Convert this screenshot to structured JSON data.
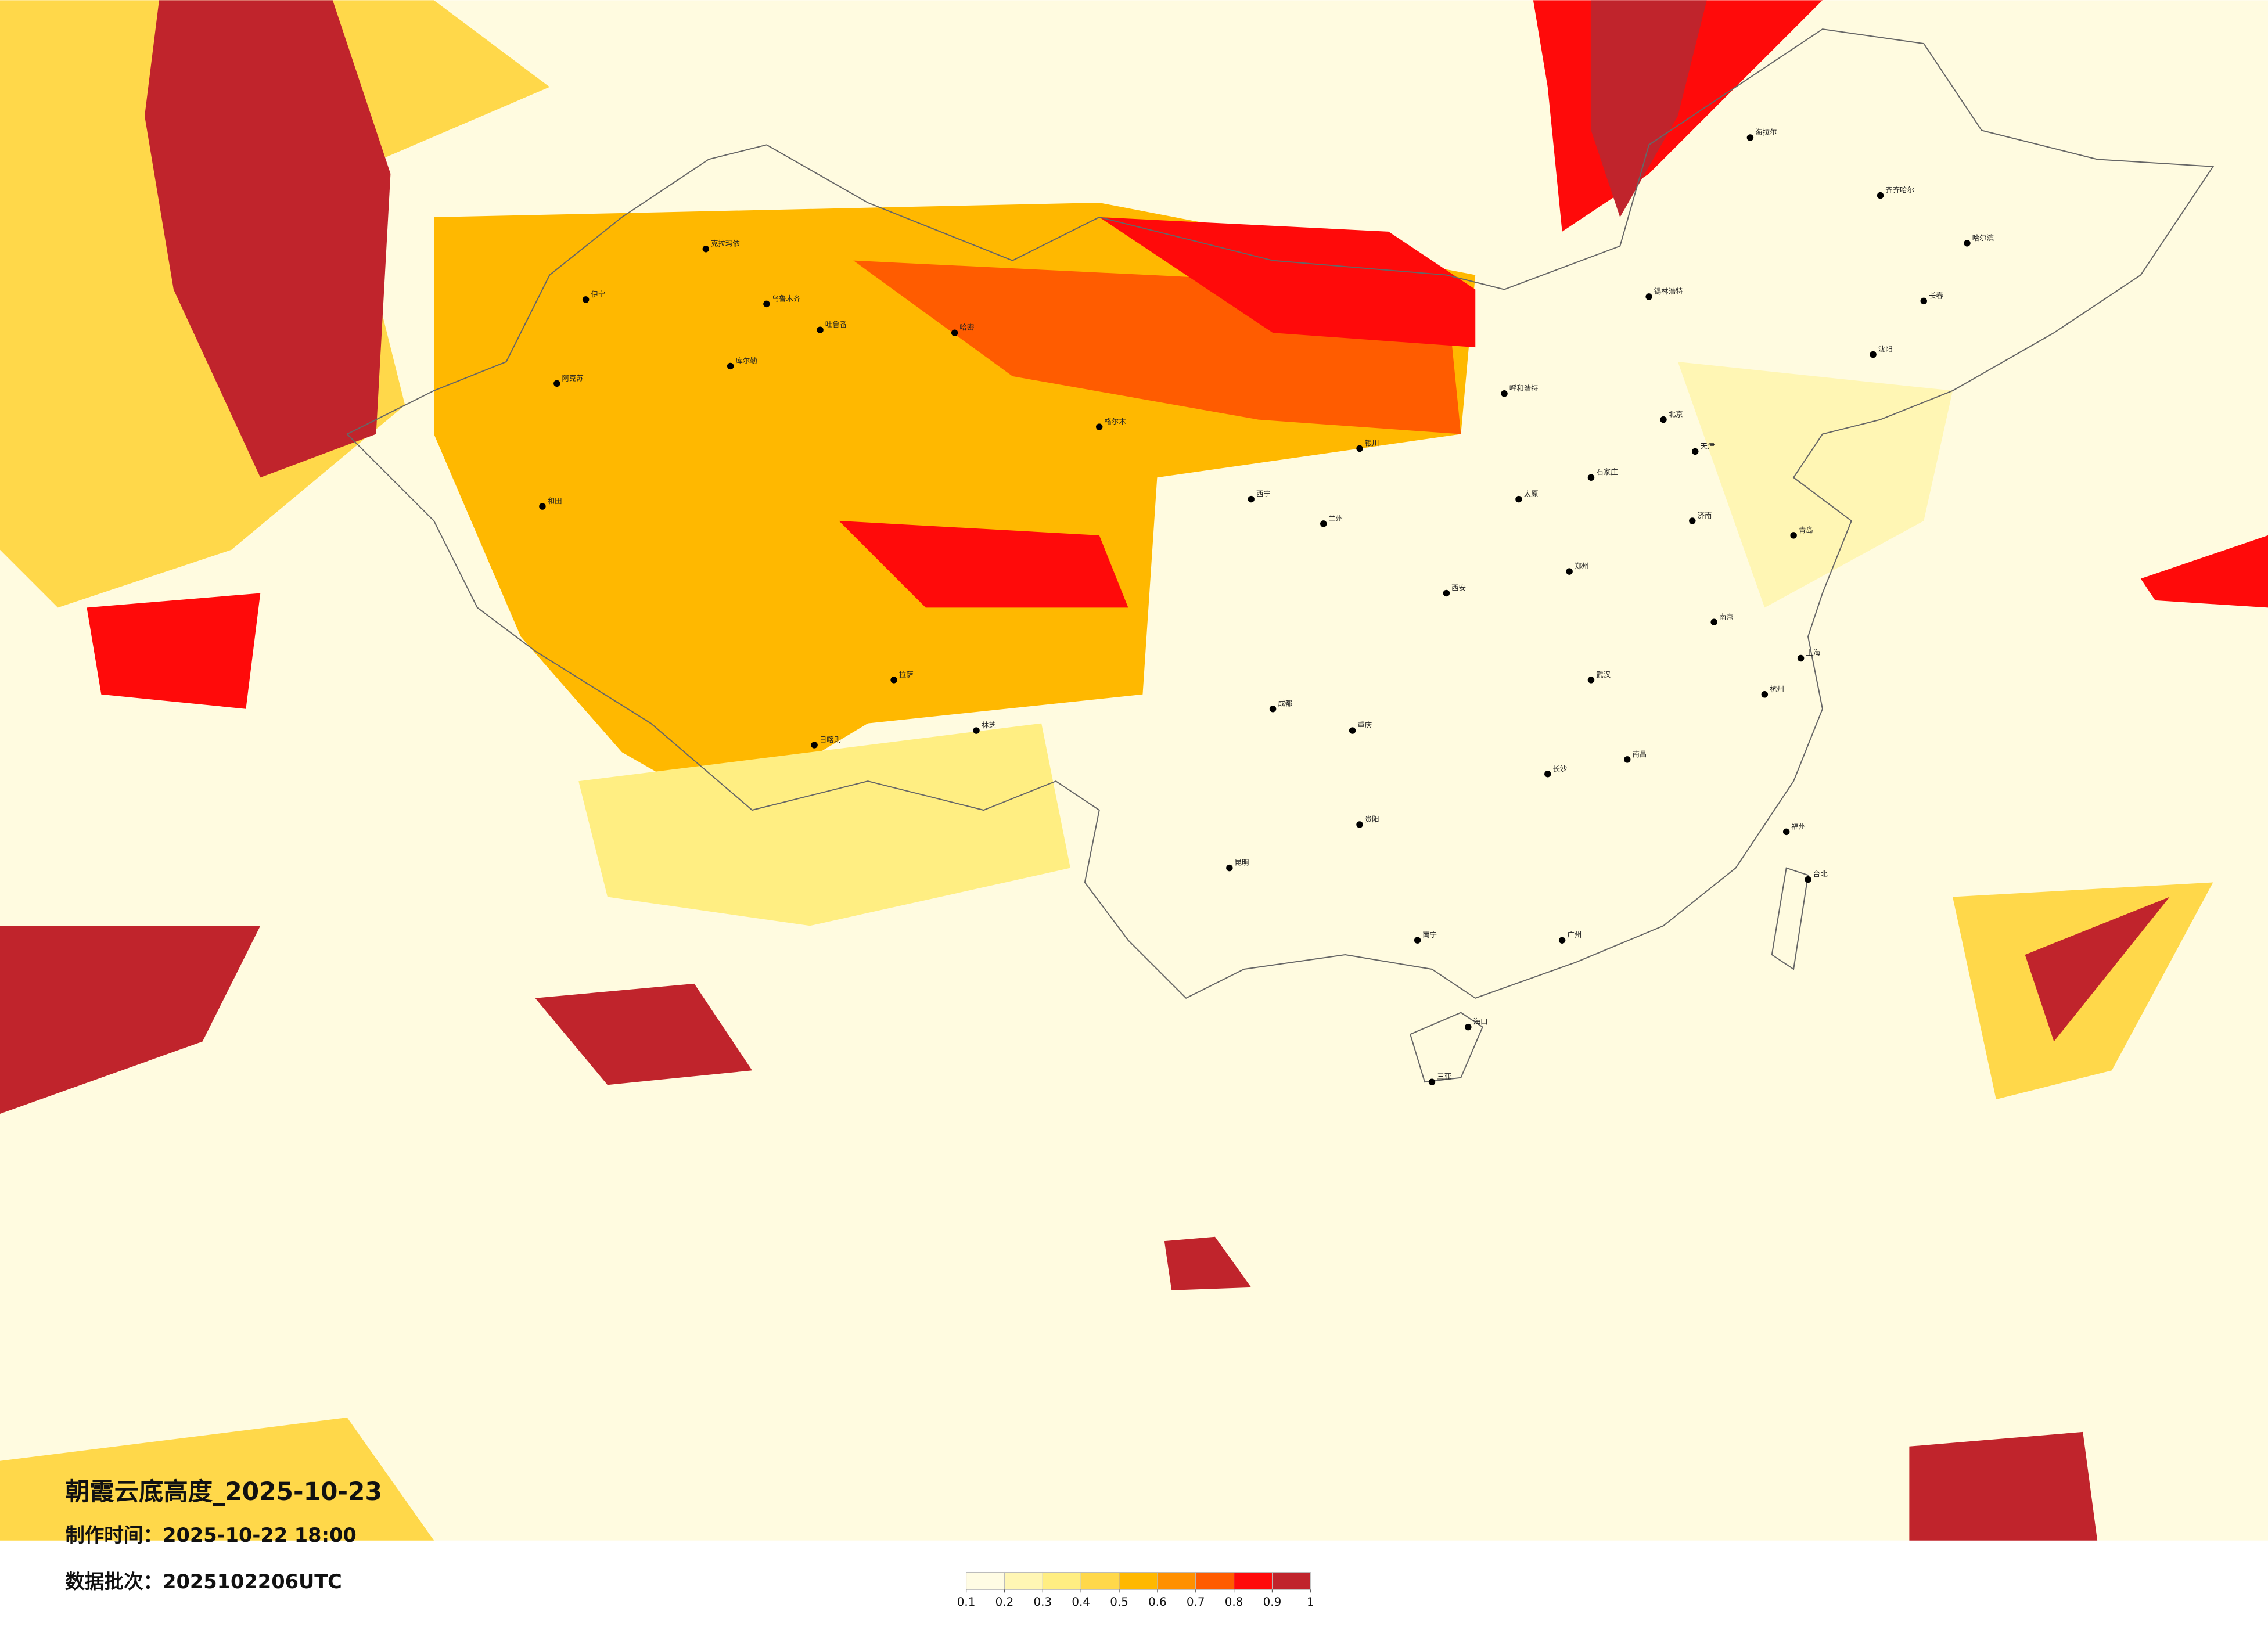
{
  "title": "朝霞云底高度_2025-10-23",
  "made_time": "制作时间：2025-10-22 18:00",
  "data_batch": "数据批次：2025102206UTC",
  "legend": {
    "ticks": [
      0.1,
      0.2,
      0.3,
      0.4,
      0.5,
      0.6,
      0.7,
      0.8,
      0.9,
      1
    ],
    "colors": [
      "#fffce4",
      "#fff6b4",
      "#ffee82",
      "#ffd84a",
      "#ffb800",
      "#ff9000",
      "#ff5c00",
      "#ff0a0a",
      "#c0242c"
    ]
  },
  "cities": [
    "克拉玛依",
    "乌鲁木齐",
    "吐鲁番",
    "哈密",
    "库尔勒",
    "阿克苏",
    "伊宁",
    "和田",
    "格尔木",
    "西宁",
    "拉萨",
    "日喀则",
    "林芝",
    "兰州",
    "银川",
    "呼和浩特",
    "北京",
    "天津",
    "石家庄",
    "太原",
    "郑州",
    "西安",
    "成都",
    "重庆",
    "贵阳",
    "昆明",
    "南宁",
    "广州",
    "海口",
    "三亚",
    "长沙",
    "武汉",
    "南京",
    "上海",
    "杭州",
    "福州",
    "南昌",
    "台北",
    "哈尔滨",
    "长春",
    "沈阳",
    "齐齐哈尔",
    "锡林浩特",
    "济南",
    "青岛",
    "海拉尔"
  ]
}
